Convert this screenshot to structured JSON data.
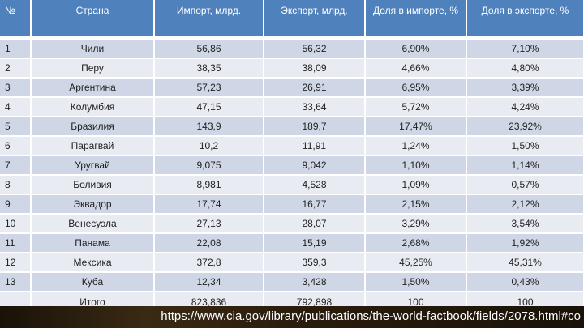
{
  "headers": [
    "№",
    "Страна",
    "Импорт, млрд.",
    "Экспорт, млрд.",
    "Доля в импорте, %",
    "Доля в экспорте, %"
  ],
  "rows": [
    [
      "1",
      "Чили",
      "56,86",
      "56,32",
      "6,90%",
      "7,10%"
    ],
    [
      "2",
      "Перу",
      "38,35",
      "38,09",
      "4,66%",
      "4,80%"
    ],
    [
      "3",
      "Аргентина",
      "57,23",
      "26,91",
      "6,95%",
      "3,39%"
    ],
    [
      "4",
      "Колумбия",
      "47,15",
      "33,64",
      "5,72%",
      "4,24%"
    ],
    [
      "5",
      "Бразилия",
      "143,9",
      "189,7",
      "17,47%",
      "23,92%"
    ],
    [
      "6",
      "Парагвай",
      "10,2",
      "11,91",
      "1,24%",
      "1,50%"
    ],
    [
      "7",
      "Уругвай",
      "9,075",
      "9,042",
      "1,10%",
      "1,14%"
    ],
    [
      "8",
      "Боливия",
      "8,981",
      "4,528",
      "1,09%",
      "0,57%"
    ],
    [
      "9",
      "Эквадор",
      "17,74",
      "16,77",
      "2,15%",
      "2,12%"
    ],
    [
      "10",
      "Венесуэла",
      "27,13",
      "28,07",
      "3,29%",
      "3,54%"
    ],
    [
      "11",
      "Панама",
      "22,08",
      "15,19",
      "2,68%",
      "1,92%"
    ],
    [
      "12",
      "Мексика",
      "372,8",
      "359,3",
      "45,25%",
      "45,31%"
    ],
    [
      "13",
      "Куба",
      "12,34",
      "3,428",
      "1,50%",
      "0,43%"
    ]
  ],
  "total": [
    "",
    "Итого",
    "823,836",
    "792,898",
    "100",
    "100"
  ],
  "source_link": "https://www.cia.gov/library/publications/the-world-factbook/fields/2078.html#co"
}
